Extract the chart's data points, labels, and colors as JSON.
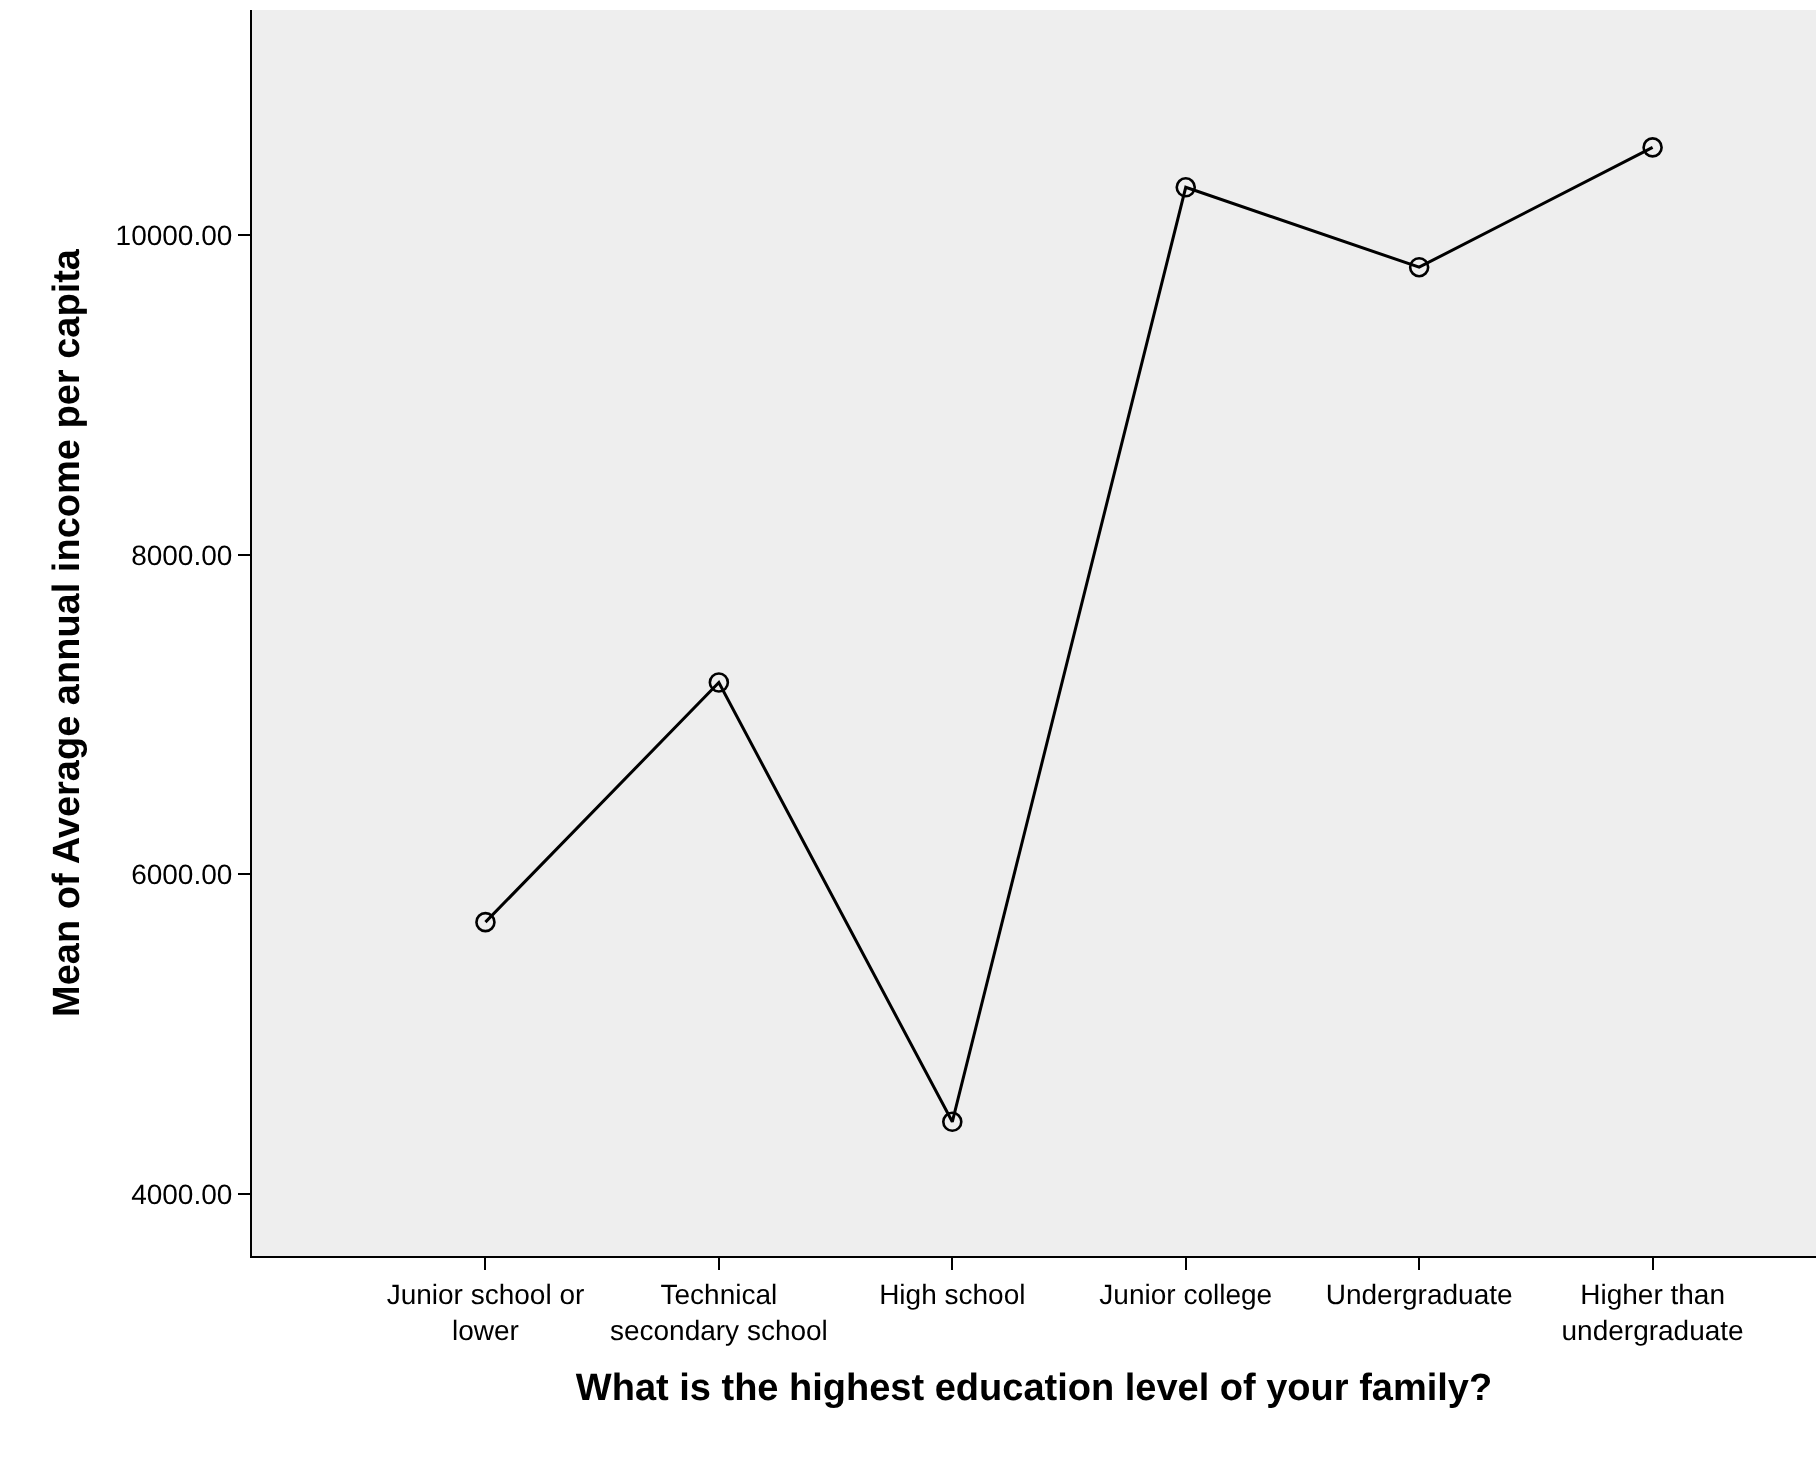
{
  "chart_data": {
    "type": "line",
    "xlabel": "What is the highest education level of your family?",
    "ylabel": "Mean of Average annual income per capita",
    "categories": [
      "Junior school or lower",
      "Technical secondary school",
      "High school",
      "Junior college",
      "Undergraduate",
      "Higher than undergraduate"
    ],
    "series": [
      {
        "color": "#000000",
        "values": [
          5700,
          7200,
          4450,
          10300,
          9800,
          10550
        ]
      }
    ],
    "ylim": [
      3610,
      11410
    ],
    "yticks": [
      {
        "value": 4000,
        "label": "4000.00"
      },
      {
        "value": 6000,
        "label": "6000.00"
      },
      {
        "value": 8000,
        "label": "8000.00"
      },
      {
        "value": 10000,
        "label": "10000.00"
      }
    ],
    "grid": false,
    "marker": "circle",
    "line_style": "solid"
  }
}
